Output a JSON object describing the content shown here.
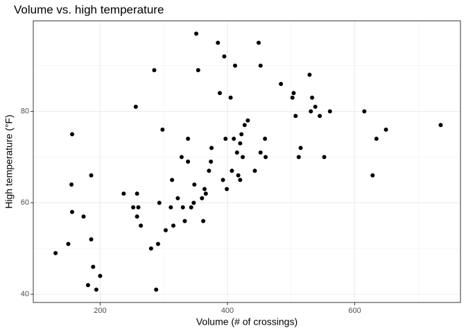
{
  "chart_data": {
    "type": "scatter",
    "title": "Volume vs. high temperature",
    "x_label": "Volume (# of crossings)",
    "y_label": "High temperature (°F)",
    "xlim": [
      95,
      766
    ],
    "ylim": [
      38.2,
      99.8
    ],
    "xticks": [
      200,
      400,
      600
    ],
    "yticks": [
      40,
      60,
      80
    ],
    "x_minor_grid": [
      100,
      300,
      500,
      700
    ],
    "y_minor_grid": [
      50,
      70,
      90
    ],
    "grid": true,
    "color": "#000000",
    "x": [
      130,
      150,
      156,
      155,
      156,
      174,
      186,
      186,
      189,
      194,
      200,
      181,
      237,
      252,
      258,
      258,
      260,
      264,
      256,
      285,
      298,
      293,
      291,
      288,
      280,
      303,
      313,
      311,
      315,
      322,
      328,
      330,
      333,
      338,
      338,
      343,
      347,
      348,
      351,
      354,
      360,
      362,
      364,
      366,
      371,
      374,
      375,
      385,
      388,
      393,
      395,
      397,
      399,
      405,
      407,
      410,
      412,
      415,
      417,
      420,
      420,
      422,
      424,
      427,
      432,
      443,
      449,
      452,
      452,
      459,
      460,
      484,
      502,
      504,
      507,
      512,
      515,
      529,
      531,
      533,
      538,
      545,
      552,
      561,
      615,
      628,
      634,
      649,
      735
    ],
    "y": [
      49,
      51,
      75,
      64,
      58,
      57,
      52,
      66,
      46,
      41,
      44,
      42,
      62,
      59,
      62,
      57,
      59,
      55,
      81,
      89,
      76,
      60,
      51,
      41,
      50,
      54,
      65,
      59,
      55,
      61,
      70,
      59,
      56,
      74,
      69,
      59,
      60,
      64,
      97,
      89,
      61,
      56,
      63,
      62,
      67,
      69,
      72,
      95,
      84,
      65,
      92,
      74,
      63,
      83,
      67,
      74,
      90,
      71,
      66,
      65,
      73,
      75,
      70,
      77,
      78,
      67,
      95,
      90,
      71,
      74,
      70,
      86,
      83,
      84,
      79,
      70,
      72,
      88,
      80,
      83,
      81,
      79,
      70,
      80,
      80,
      66,
      74,
      76,
      77
    ]
  }
}
